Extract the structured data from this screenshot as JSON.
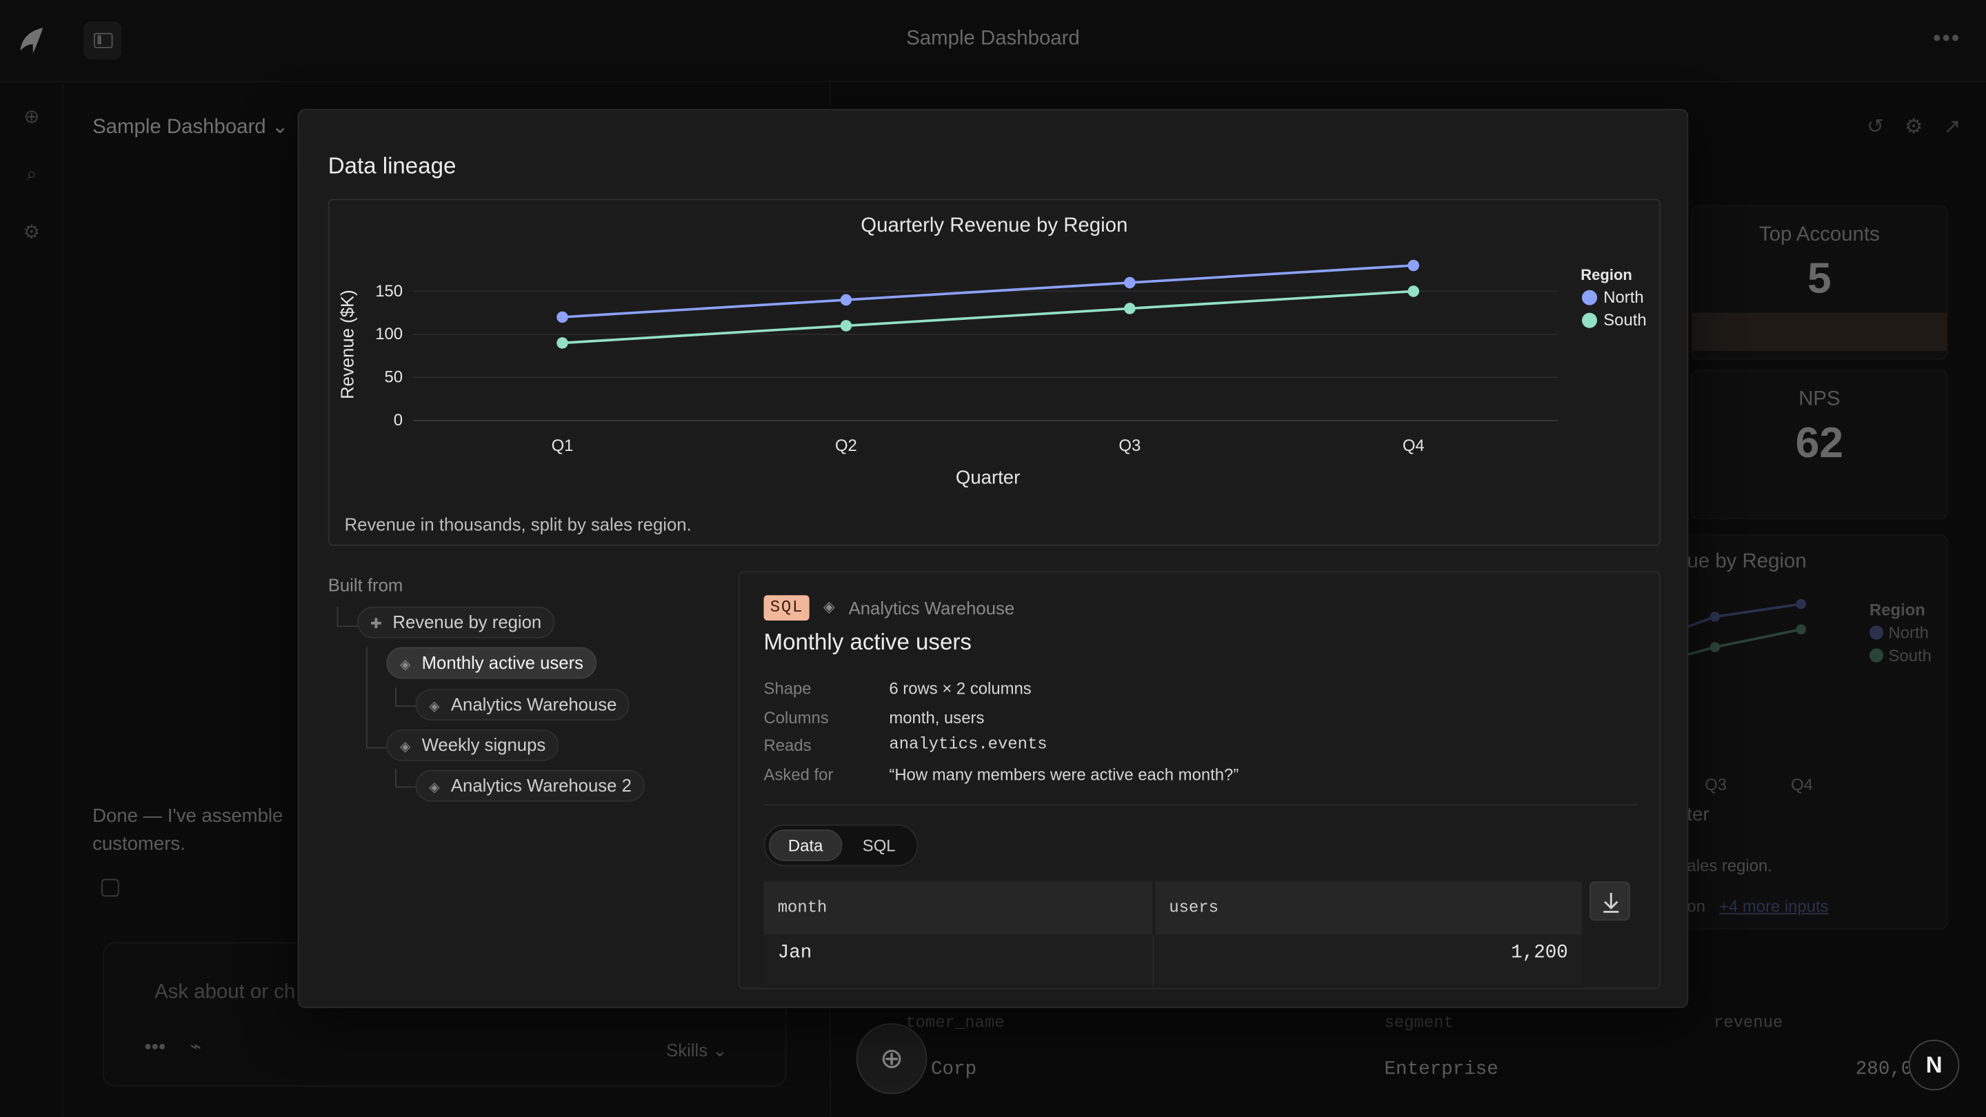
{
  "app": {
    "title": "Sample Dashboard",
    "menu_glyph": "•••"
  },
  "left_pane": {
    "dashboard_title": "Sample Dashboard",
    "chevron": "⌄",
    "assistant_message": "Done — I've assembled the dashboard for your customers.",
    "assistant_message_line1": "Done — I've assemble",
    "assistant_message_line2": "customers.",
    "composer": {
      "placeholder": "Ask about or ch",
      "more": "•••",
      "skills_label": "Skills",
      "skills_chevron": "⌄"
    }
  },
  "right_pane": {
    "kpis": [
      {
        "label": "Top Accounts",
        "value": "5"
      },
      {
        "label": "NPS",
        "value": "62"
      }
    ],
    "bg_chart": {
      "title": "ue by Region",
      "legend_title": "Region",
      "legend": [
        "North",
        "South"
      ],
      "ticks": [
        "Q3",
        "Q4"
      ],
      "xlabel": "ter",
      "caption": "ales region.",
      "more_inputs": "+4 more inputs",
      "inputs_prefix": "on"
    },
    "table": {
      "headers": [
        "tomer_name",
        "segment",
        "revenue"
      ],
      "row": [
        "Corp",
        "Enterprise",
        "280,0"
      ]
    },
    "badge": "N"
  },
  "colors": {
    "north": "#8da2fb",
    "south": "#93e0c6",
    "sql_badge": "#f2b79b"
  },
  "modal": {
    "title": "Data lineage",
    "chart_caption": "Revenue in thousands, split by sales region.",
    "built_from_label": "Built from",
    "lineage": [
      {
        "label": "Revenue by region",
        "icon": "chart-icon"
      },
      {
        "label": "Monthly active users",
        "icon": "layers-icon",
        "active": true
      },
      {
        "label": "Analytics Warehouse",
        "icon": "layers-icon"
      },
      {
        "label": "Weekly signups",
        "icon": "layers-icon"
      },
      {
        "label": "Analytics Warehouse 2",
        "icon": "layers-icon"
      }
    ],
    "detail": {
      "badge": "SQL",
      "source": "Analytics Warehouse",
      "title": "Monthly active users",
      "meta": [
        {
          "key": "Shape",
          "value": "6 rows × 2 columns"
        },
        {
          "key": "Columns",
          "value": "month, users"
        },
        {
          "key": "Reads",
          "value": "analytics.events"
        },
        {
          "key": "Asked for",
          "value": "“How many members were active each month?”"
        }
      ],
      "tabs": [
        "Data",
        "SQL"
      ],
      "table": {
        "headers": [
          "month",
          "users"
        ],
        "rows": [
          [
            "Jan",
            "1,200"
          ]
        ]
      }
    }
  },
  "chart_data": {
    "type": "line",
    "title": "Quarterly Revenue by Region",
    "xlabel": "Quarter",
    "ylabel": "Revenue ($K)",
    "categories": [
      "Q1",
      "Q2",
      "Q3",
      "Q4"
    ],
    "yticks": [
      0,
      50,
      100,
      150
    ],
    "ylim": [
      0,
      180
    ],
    "grid": true,
    "legend_title": "Region",
    "legend_position": "right",
    "series": [
      {
        "name": "North",
        "values": [
          120,
          140,
          160,
          180
        ]
      },
      {
        "name": "South",
        "values": [
          90,
          110,
          130,
          150
        ]
      }
    ]
  }
}
